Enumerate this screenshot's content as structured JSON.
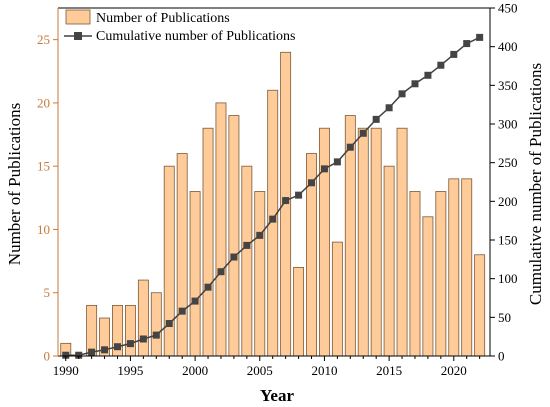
{
  "colors": {
    "bar_fill": "#FFCC99",
    "bar_stroke": "#7a5a3a",
    "left_axis": "#C87A38",
    "right_axis": "#000000",
    "line": "#404040",
    "marker": "#444444"
  },
  "chart_data": {
    "type": "bar",
    "xlabel": "Year",
    "ylabel": "Number of Publications",
    "y2label": "Cumulative number of Publications",
    "x_ticks": [
      "1990",
      "1995",
      "2000",
      "2005",
      "2010",
      "2015",
      "2020"
    ],
    "y_ticks": [
      "0",
      "5",
      "10",
      "15",
      "20",
      "25"
    ],
    "y2_ticks": [
      "0",
      "50",
      "100",
      "150",
      "200",
      "250",
      "300",
      "350",
      "400",
      "450"
    ],
    "ylim": [
      0,
      27.5
    ],
    "y2lim": [
      0,
      450
    ],
    "xlim": [
      1989.4,
      2022.8
    ],
    "legend_position": "top-left",
    "x": [
      1990,
      1991,
      1992,
      1993,
      1994,
      1995,
      1996,
      1997,
      1998,
      1999,
      2000,
      2001,
      2002,
      2003,
      2004,
      2005,
      2006,
      2007,
      2008,
      2009,
      2010,
      2011,
      2012,
      2013,
      2014,
      2015,
      2016,
      2017,
      2018,
      2019,
      2020,
      2021,
      2022
    ],
    "series": [
      {
        "name": "Number of Publications",
        "kind": "bar",
        "axis": "left",
        "values": [
          1,
          0,
          4,
          3,
          4,
          4,
          6,
          5,
          15,
          16,
          13,
          18,
          20,
          19,
          15,
          13,
          21,
          24,
          7,
          16,
          18,
          9,
          19,
          18,
          18,
          15,
          18,
          13,
          11,
          13,
          14,
          14,
          8
        ]
      },
      {
        "name": "Cumulative number of Publications",
        "kind": "line",
        "axis": "right",
        "values": [
          1,
          1,
          5,
          8,
          12,
          16,
          22,
          27,
          42,
          58,
          71,
          89,
          109,
          128,
          143,
          156,
          177,
          201,
          208,
          224,
          242,
          251,
          270,
          288,
          306,
          321,
          339,
          352,
          363,
          376,
          390,
          404,
          412
        ]
      }
    ]
  }
}
